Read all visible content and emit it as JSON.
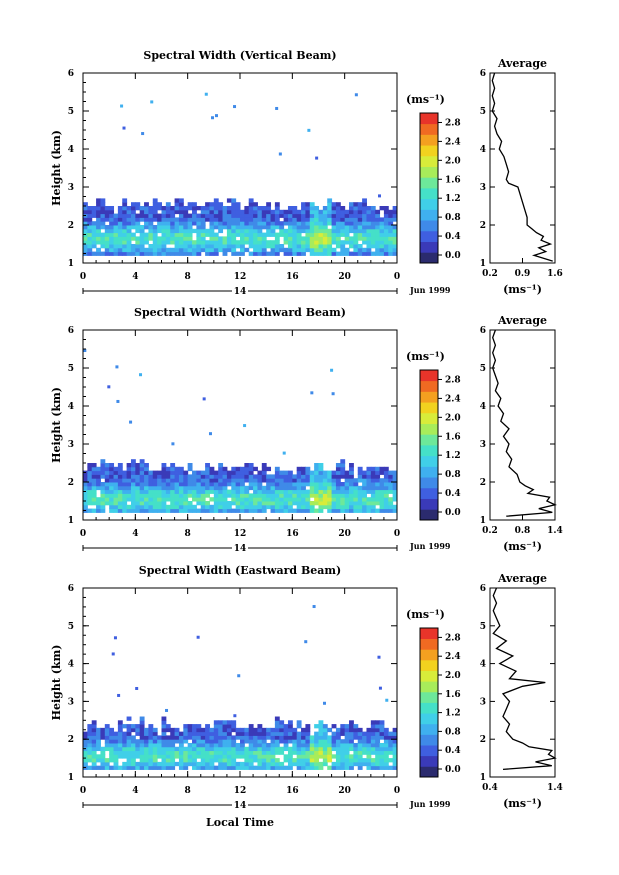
{
  "figure": {
    "xlabel": "Local Time",
    "date_label": "Jun 1999",
    "day_label": "14",
    "unit_label": "(ms⁻¹)"
  },
  "colors": {
    "scale": [
      "#2b2b6e",
      "#3a3ab8",
      "#3f5fe0",
      "#3f8ae8",
      "#3fb0ef",
      "#40cfe8",
      "#45e0c8",
      "#6de89a",
      "#a8ec5a",
      "#d8ec3a",
      "#f2d21f",
      "#f4a020",
      "#f06a22",
      "#e8342a"
    ],
    "outline": "#000000",
    "background": "#ffffff"
  },
  "chart_data": [
    {
      "type": "heatmap",
      "title": "Spectral Width (Vertical Beam)",
      "xlabel": "Local Time",
      "ylabel": "Height (km)",
      "xlim": [
        0,
        24
      ],
      "ylim": [
        1,
        6
      ],
      "xticks": [
        "0",
        "4",
        "8",
        "12",
        "16",
        "20",
        "0"
      ],
      "yticks": [
        "1",
        "2",
        "3",
        "4",
        "5",
        "6"
      ],
      "layer_top_km": 2.5,
      "echo_peak_km": 1.6,
      "colorbar": {
        "label": "(ms⁻¹)",
        "ticks": [
          "0.0",
          "0.4",
          "0.8",
          "1.2",
          "1.6",
          "2.0",
          "2.4",
          "2.8"
        ],
        "range": [
          0,
          3.0
        ]
      },
      "profile": {
        "title": "Average",
        "xlabel": "(ms⁻¹)",
        "xticks": [
          "0.2",
          "0.9",
          "1.6"
        ],
        "xlim": [
          0.2,
          1.6
        ],
        "heights": [
          1.05,
          1.2,
          1.3,
          1.4,
          1.5,
          1.6,
          1.7,
          1.8,
          1.9,
          2.0,
          2.2,
          2.4,
          2.6,
          2.8,
          3.0,
          3.1,
          3.2,
          3.4,
          3.6,
          3.8,
          4.0,
          4.2,
          4.4,
          4.6,
          4.8,
          5.0,
          5.2,
          5.4,
          5.6,
          5.8,
          6.0
        ],
        "values": [
          1.55,
          1.15,
          1.4,
          1.25,
          1.5,
          1.3,
          1.35,
          1.2,
          1.1,
          1.0,
          1.0,
          0.95,
          0.9,
          0.85,
          0.8,
          0.6,
          0.55,
          0.6,
          0.55,
          0.5,
          0.4,
          0.45,
          0.35,
          0.3,
          0.35,
          0.25,
          0.3,
          0.25,
          0.3,
          0.25,
          0.3
        ]
      }
    },
    {
      "type": "heatmap",
      "title": "Spectral Width (Northward Beam)",
      "xlabel": "Local Time",
      "ylabel": "Height (km)",
      "xlim": [
        0,
        24
      ],
      "ylim": [
        1,
        6
      ],
      "xticks": [
        "0",
        "4",
        "8",
        "12",
        "16",
        "20",
        "0"
      ],
      "yticks": [
        "1",
        "2",
        "3",
        "4",
        "5",
        "6"
      ],
      "layer_top_km": 2.35,
      "echo_peak_km": 1.5,
      "colorbar": {
        "label": "(ms⁻¹)",
        "ticks": [
          "0.0",
          "0.4",
          "0.8",
          "1.2",
          "1.6",
          "2.0",
          "2.4",
          "2.8"
        ],
        "range": [
          0,
          3.0
        ]
      },
      "profile": {
        "title": "Average",
        "xlabel": "(ms⁻¹)",
        "xticks": [
          "0.2",
          "0.8",
          "1.4"
        ],
        "xlim": [
          0.2,
          1.4
        ],
        "heights": [
          1.1,
          1.2,
          1.3,
          1.4,
          1.5,
          1.6,
          1.7,
          1.8,
          1.9,
          2.0,
          2.2,
          2.4,
          2.6,
          2.8,
          3.0,
          3.2,
          3.4,
          3.6,
          3.8,
          4.0,
          4.2,
          4.4,
          4.6,
          4.8,
          5.0,
          5.2,
          5.4,
          5.6,
          5.8,
          6.0
        ],
        "values": [
          0.5,
          1.35,
          1.1,
          1.4,
          1.25,
          1.3,
          0.9,
          1.0,
          0.85,
          0.75,
          0.7,
          0.55,
          0.6,
          0.5,
          0.55,
          0.45,
          0.55,
          0.4,
          0.45,
          0.35,
          0.4,
          0.3,
          0.35,
          0.3,
          0.25,
          0.3,
          0.25,
          0.3,
          0.25,
          0.3
        ]
      }
    },
    {
      "type": "heatmap",
      "title": "Spectral Width (Eastward Beam)",
      "xlabel": "Local Time",
      "ylabel": "Height (km)",
      "xlim": [
        0,
        24
      ],
      "ylim": [
        1,
        6
      ],
      "xticks": [
        "0",
        "4",
        "8",
        "12",
        "16",
        "20",
        "0"
      ],
      "yticks": [
        "1",
        "2",
        "3",
        "4",
        "5",
        "6"
      ],
      "layer_top_km": 2.35,
      "echo_peak_km": 1.5,
      "colorbar": {
        "label": "(ms⁻¹)",
        "ticks": [
          "0.0",
          "0.4",
          "0.8",
          "1.2",
          "1.6",
          "2.0",
          "2.4",
          "2.8"
        ],
        "range": [
          0,
          3.0
        ]
      },
      "profile": {
        "title": "Average",
        "xlabel": "(ms⁻¹)",
        "xticks": [
          "0.4",
          "1.4"
        ],
        "xlim": [
          0.4,
          1.4
        ],
        "heights": [
          1.2,
          1.3,
          1.4,
          1.5,
          1.6,
          1.7,
          1.8,
          1.9,
          2.0,
          2.2,
          2.4,
          2.6,
          2.8,
          3.0,
          3.2,
          3.4,
          3.5,
          3.6,
          3.8,
          4.0,
          4.2,
          4.4,
          4.6,
          4.8,
          5.0,
          5.2,
          5.4,
          5.6,
          5.8,
          6.0
        ],
        "values": [
          0.6,
          1.35,
          1.1,
          1.4,
          1.3,
          1.35,
          1.0,
          0.9,
          0.75,
          0.65,
          0.7,
          0.6,
          0.65,
          0.7,
          0.6,
          0.9,
          1.25,
          0.7,
          0.8,
          0.55,
          0.75,
          0.5,
          0.65,
          0.45,
          0.55,
          0.5,
          0.45,
          0.5,
          0.45,
          0.5
        ]
      }
    }
  ]
}
